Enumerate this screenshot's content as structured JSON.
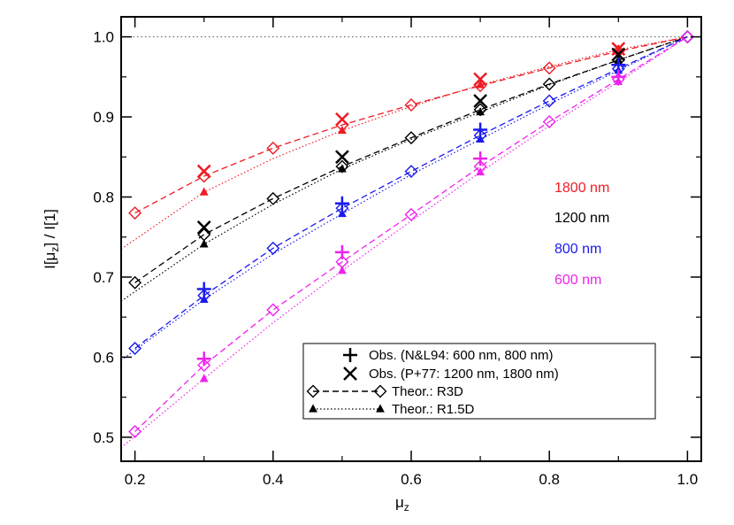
{
  "chart_data": {
    "type": "line",
    "xlabel": "μ",
    "xlabel_sub": "z",
    "ylabel_parts": [
      "I[μ",
      "z",
      "] / I[1]"
    ],
    "xlim": [
      0.18,
      1.02
    ],
    "ylim": [
      0.47,
      1.025
    ],
    "xticks": [
      0.2,
      0.4,
      0.6,
      0.8,
      1.0
    ],
    "xticks_minor": [
      0.3,
      0.5,
      0.7,
      0.9
    ],
    "yticks": [
      0.5,
      0.6,
      0.7,
      0.8,
      0.9,
      1.0
    ],
    "yticks_minor": [
      0.55,
      0.65,
      0.75,
      0.85,
      0.95
    ],
    "xtick_labels": [
      "0.2",
      "0.4",
      "0.6",
      "0.8",
      "1.0"
    ],
    "ytick_labels": [
      "0.5",
      "0.6",
      "0.7",
      "0.8",
      "0.9",
      "1.0"
    ],
    "reference_line_y": 1.0,
    "series": [
      {
        "name": "1800 nm",
        "color": "#ee1c24",
        "r3d": {
          "x": [
            0.2,
            0.3,
            0.4,
            0.5,
            0.6,
            0.7,
            0.8,
            0.9,
            1.0
          ],
          "y": [
            0.78,
            0.826,
            0.861,
            0.89,
            0.915,
            0.939,
            0.961,
            0.982,
            1.0
          ]
        },
        "r15d": {
          "x": [
            0.3,
            0.5,
            0.7,
            0.9
          ],
          "y": [
            0.806,
            0.883,
            0.94,
            0.984
          ]
        },
        "r15d_curve": {
          "x": [
            0.18,
            0.3,
            0.4,
            0.5,
            0.6,
            0.7,
            0.8,
            0.9,
            1.0
          ],
          "y": [
            0.735,
            0.806,
            0.848,
            0.883,
            0.913,
            0.94,
            0.963,
            0.984,
            1.0
          ]
        },
        "obs": {
          "marker": "x",
          "x": [
            0.3,
            0.5,
            0.7,
            0.9
          ],
          "y": [
            0.832,
            0.897,
            0.947,
            0.985
          ]
        }
      },
      {
        "name": "1200 nm",
        "color": "#000000",
        "r3d": {
          "x": [
            0.2,
            0.3,
            0.4,
            0.5,
            0.6,
            0.7,
            0.8,
            0.9,
            1.0
          ],
          "y": [
            0.693,
            0.753,
            0.798,
            0.838,
            0.874,
            0.909,
            0.941,
            0.971,
            1.0
          ]
        },
        "r15d": {
          "x": [
            0.3,
            0.5,
            0.7,
            0.9
          ],
          "y": [
            0.741,
            0.835,
            0.906,
            0.971
          ]
        },
        "r15d_curve": {
          "x": [
            0.18,
            0.3,
            0.4,
            0.5,
            0.6,
            0.7,
            0.8,
            0.9,
            1.0
          ],
          "y": [
            0.67,
            0.741,
            0.791,
            0.835,
            0.872,
            0.906,
            0.94,
            0.971,
            1.0
          ]
        },
        "obs": {
          "marker": "x",
          "x": [
            0.3,
            0.5,
            0.7,
            0.9
          ],
          "y": [
            0.762,
            0.85,
            0.92,
            0.978
          ]
        }
      },
      {
        "name": "800 nm",
        "color": "#1a1aee",
        "r3d": {
          "x": [
            0.2,
            0.3,
            0.4,
            0.5,
            0.6,
            0.7,
            0.8,
            0.9,
            1.0
          ],
          "y": [
            0.611,
            0.677,
            0.736,
            0.786,
            0.832,
            0.877,
            0.92,
            0.96,
            1.0
          ]
        },
        "r15d": {
          "x": [
            0.3,
            0.5,
            0.7,
            0.9
          ],
          "y": [
            0.672,
            0.779,
            0.872,
            0.958
          ]
        },
        "r15d_curve": {
          "x": [
            0.18,
            0.3,
            0.4,
            0.5,
            0.6,
            0.7,
            0.8,
            0.9,
            1.0
          ],
          "y": [
            0.596,
            0.672,
            0.729,
            0.779,
            0.828,
            0.872,
            0.916,
            0.958,
            1.0
          ]
        },
        "obs": {
          "marker": "+",
          "x": [
            0.3,
            0.5,
            0.7,
            0.9
          ],
          "y": [
            0.685,
            0.792,
            0.884,
            0.965
          ]
        }
      },
      {
        "name": "600 nm",
        "color": "#ee22ee",
        "r3d": {
          "x": [
            0.2,
            0.3,
            0.4,
            0.5,
            0.6,
            0.7,
            0.8,
            0.9,
            1.0
          ],
          "y": [
            0.507,
            0.59,
            0.659,
            0.719,
            0.778,
            0.838,
            0.894,
            0.947,
            1.0
          ]
        },
        "r15d": {
          "x": [
            0.3,
            0.5,
            0.7,
            0.9
          ],
          "y": [
            0.573,
            0.708,
            0.831,
            0.944
          ]
        },
        "r15d_curve": {
          "x": [
            0.18,
            0.3,
            0.4,
            0.5,
            0.6,
            0.7,
            0.8,
            0.9,
            1.0
          ],
          "y": [
            0.487,
            0.573,
            0.643,
            0.708,
            0.77,
            0.831,
            0.889,
            0.944,
            1.0
          ]
        },
        "obs": {
          "marker": "+",
          "x": [
            0.3,
            0.5,
            0.7,
            0.9
          ],
          "y": [
            0.598,
            0.731,
            0.848,
            0.95
          ]
        }
      }
    ],
    "legend": [
      {
        "marker": "plus",
        "line": "none",
        "text": "Obs. (N&L94: 600 nm, 800 nm)"
      },
      {
        "marker": "cross",
        "line": "none",
        "text": "Obs. (P+77: 1200 nm, 1800 nm)"
      },
      {
        "marker": "diamond",
        "line": "dashed",
        "text": "Theor.: R3D"
      },
      {
        "marker": "triangle",
        "line": "dotted",
        "text": "Theor.: R1.5D"
      }
    ],
    "legend_placement": "bottom-right"
  }
}
